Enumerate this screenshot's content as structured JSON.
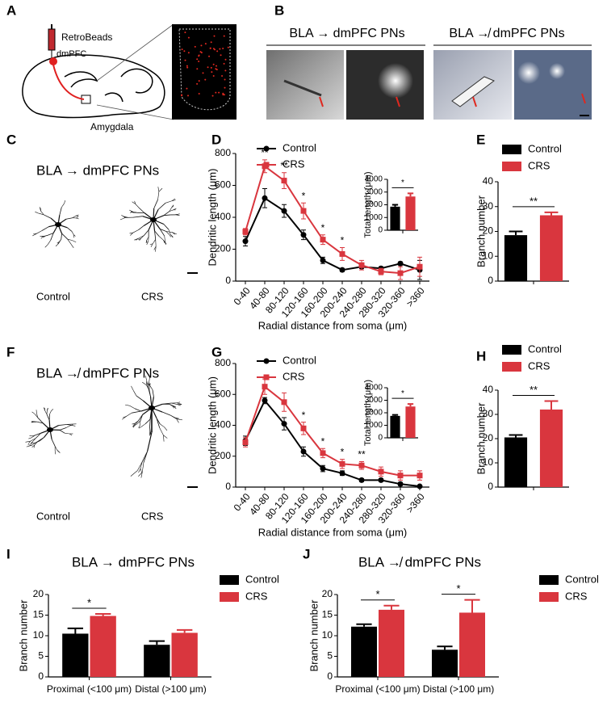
{
  "panel_labels": [
    "A",
    "B",
    "C",
    "D",
    "E",
    "F",
    "G",
    "H",
    "I",
    "J"
  ],
  "panel_a": {
    "injection": "RetroBeads",
    "target": "dmPFC",
    "source": "Amygdala"
  },
  "panel_b": {
    "projecting": "BLA → dmPFC PNs",
    "non_projecting": "BLA ↛ dmPFC PNs"
  },
  "panel_c": {
    "title": "BLA → dmPFC PNs",
    "labels": [
      "Control",
      "CRS"
    ]
  },
  "panel_f": {
    "title": "BLA ↛ dmPFC PNs",
    "labels": [
      "Control",
      "CRS"
    ]
  },
  "chart_data": [
    {
      "type": "line",
      "y_label": "Dendritic length (μm)",
      "x_label": "Radial distance from soma (μm)",
      "categories": [
        "0-40",
        "40-80",
        "80-120",
        "120-160",
        "160-200",
        "200-240",
        "240-280",
        "280-320",
        "320-360",
        ">360"
      ],
      "series": [
        {
          "name": "Control",
          "color": "#000000",
          "marker": "circle",
          "values": [
            250,
            520,
            440,
            290,
            130,
            70,
            90,
            80,
            110,
            70
          ],
          "errors": [
            30,
            60,
            40,
            30,
            20,
            10,
            10,
            10,
            10,
            60
          ]
        },
        {
          "name": "CRS",
          "color": "#d9363e",
          "marker": "square",
          "values": [
            310,
            720,
            630,
            440,
            260,
            170,
            100,
            60,
            50,
            90
          ],
          "errors": [
            20,
            40,
            50,
            50,
            30,
            40,
            30,
            20,
            40,
            60
          ]
        }
      ],
      "annotations": [
        null,
        "**",
        "**",
        "*",
        "*",
        "*",
        null,
        null,
        null,
        null
      ],
      "ylim": [
        0,
        800
      ],
      "yticks": [
        0,
        200,
        400,
        600,
        800
      ],
      "legend": "upper left"
    },
    {
      "type": "bar",
      "y_label": "Total length (μm)",
      "series": [
        {
          "color": "#000000",
          "values": [
            1850
          ],
          "errors": [
            150
          ]
        },
        {
          "color": "#d9363e",
          "values": [
            2650
          ],
          "errors": [
            250
          ]
        }
      ],
      "significance": "*",
      "ylim": [
        0,
        4000
      ],
      "yticks": [
        0,
        1000,
        2000,
        3000,
        4000
      ]
    },
    {
      "type": "bar",
      "y_label": "Branch number",
      "series": [
        {
          "name": "Control",
          "color": "#000000",
          "values": [
            18.5
          ],
          "errors": [
            1.5
          ]
        },
        {
          "name": "CRS",
          "color": "#d9363e",
          "values": [
            26.5
          ],
          "errors": [
            1.2
          ]
        }
      ],
      "significance": "**",
      "ylim": [
        0,
        40
      ],
      "yticks": [
        0,
        10,
        20,
        30,
        40
      ],
      "legend": "upper right"
    },
    {
      "type": "line",
      "y_label": "Dendritic length (μm)",
      "x_label": "Radial distance from soma (μm)",
      "categories": [
        "0-40",
        "40-80",
        "80-120",
        "120-160",
        "160-200",
        "200-240",
        "240-280",
        "280-320",
        "320-360",
        ">360"
      ],
      "series": [
        {
          "name": "Control",
          "color": "#000000",
          "marker": "circle",
          "values": [
            300,
            560,
            410,
            230,
            120,
            90,
            45,
            45,
            20,
            5
          ],
          "errors": [
            30,
            20,
            40,
            30,
            20,
            15,
            10,
            10,
            10,
            5
          ]
        },
        {
          "name": "CRS",
          "color": "#d9363e",
          "marker": "square",
          "values": [
            290,
            650,
            550,
            380,
            220,
            150,
            140,
            100,
            75,
            75
          ],
          "errors": [
            30,
            50,
            60,
            40,
            30,
            30,
            25,
            30,
            30,
            30
          ]
        }
      ],
      "annotations": [
        null,
        null,
        null,
        "*",
        "*",
        "*",
        "**",
        null,
        null,
        null
      ],
      "ylim": [
        0,
        800
      ],
      "yticks": [
        0,
        200,
        400,
        600,
        800
      ],
      "legend": "upper left"
    },
    {
      "type": "bar",
      "y_label": "Total length (μm)",
      "series": [
        {
          "color": "#000000",
          "values": [
            1750
          ],
          "errors": [
            80
          ]
        },
        {
          "color": "#d9363e",
          "values": [
            2500
          ],
          "errors": [
            200
          ]
        }
      ],
      "significance": "*",
      "ylim": [
        0,
        4000
      ],
      "yticks": [
        0,
        1000,
        2000,
        3000,
        4000
      ]
    },
    {
      "type": "bar",
      "y_label": "Branch number",
      "series": [
        {
          "name": "Control",
          "color": "#000000",
          "values": [
            20.5
          ],
          "errors": [
            1
          ]
        },
        {
          "name": "CRS",
          "color": "#d9363e",
          "values": [
            32
          ],
          "errors": [
            3.5
          ]
        }
      ],
      "significance": "**",
      "ylim": [
        0,
        40
      ],
      "yticks": [
        0,
        10,
        20,
        30,
        40
      ],
      "legend": "upper right"
    },
    {
      "type": "bar",
      "title": "BLA → dmPFC PNs",
      "y_label": "Branch number",
      "categories": [
        "Proximal (<100 μm)",
        "Distal (>100 μm)"
      ],
      "series": [
        {
          "name": "Control",
          "color": "#000000",
          "values": [
            10.5,
            7.8
          ],
          "errors": [
            1.3,
            0.9
          ]
        },
        {
          "name": "CRS",
          "color": "#d9363e",
          "values": [
            14.8,
            10.7
          ],
          "errors": [
            0.5,
            0.7
          ]
        }
      ],
      "significance": [
        "*",
        null
      ],
      "ylim": [
        0,
        20
      ],
      "yticks": [
        0,
        5,
        10,
        15,
        20
      ],
      "legend": "upper right"
    },
    {
      "type": "bar",
      "title": "BLA ↛ dmPFC PNs",
      "y_label": "Branch number",
      "categories": [
        "Proximal (<100 μm)",
        "Distal (>100 μm)"
      ],
      "series": [
        {
          "name": "Control",
          "color": "#000000",
          "values": [
            12.2,
            6.6
          ],
          "errors": [
            0.6,
            0.8
          ]
        },
        {
          "name": "CRS",
          "color": "#d9363e",
          "values": [
            16.3,
            15.6
          ],
          "errors": [
            1.0,
            3.1
          ]
        }
      ],
      "significance": [
        "*",
        "*"
      ],
      "ylim": [
        0,
        20
      ],
      "yticks": [
        0,
        5,
        10,
        15,
        20
      ],
      "legend": "upper right"
    }
  ]
}
